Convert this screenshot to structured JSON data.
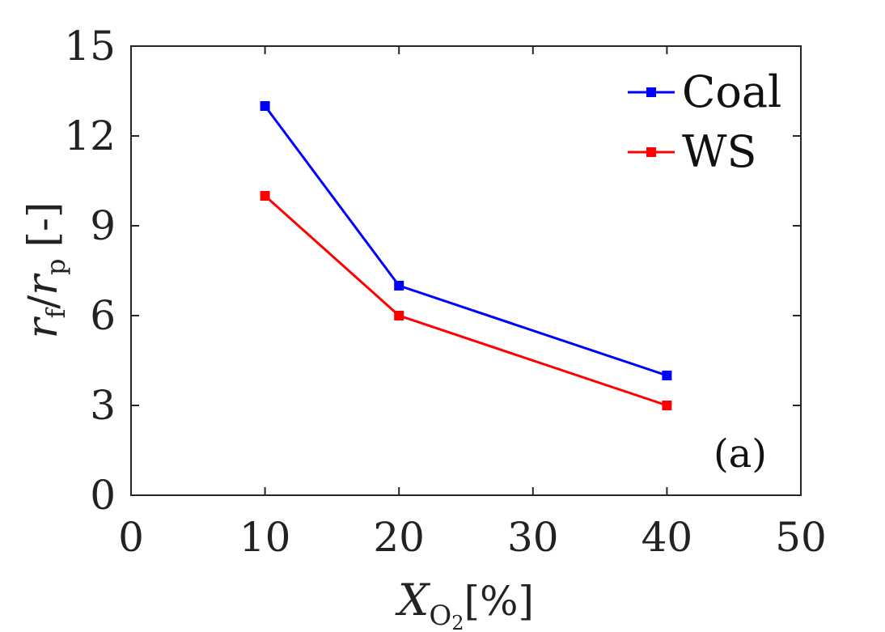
{
  "chart_data": {
    "type": "line",
    "x": [
      10,
      20,
      40
    ],
    "series": [
      {
        "name": "Coal",
        "values": [
          13,
          7,
          4
        ],
        "color": "#0000ff",
        "marker": "square"
      },
      {
        "name": "WS",
        "values": [
          10,
          6,
          3
        ],
        "color": "#ff0000",
        "marker": "square"
      }
    ],
    "xlim": [
      0,
      50
    ],
    "ylim": [
      0,
      15
    ],
    "xticks": [
      0,
      10,
      20,
      30,
      40,
      50
    ],
    "yticks": [
      0,
      3,
      6,
      9,
      12,
      15
    ],
    "xlabel": {
      "main": "X",
      "subscript": "O",
      "subsubscript": "2",
      "unit": "[%]"
    },
    "ylabel": {
      "numerator": "r",
      "numerator_sub": "f",
      "slash": "/",
      "denominator": "r",
      "denominator_sub": "p",
      "unit": "[-]"
    },
    "legend_position": "top-right",
    "annotation": "(a)",
    "grid": false
  }
}
